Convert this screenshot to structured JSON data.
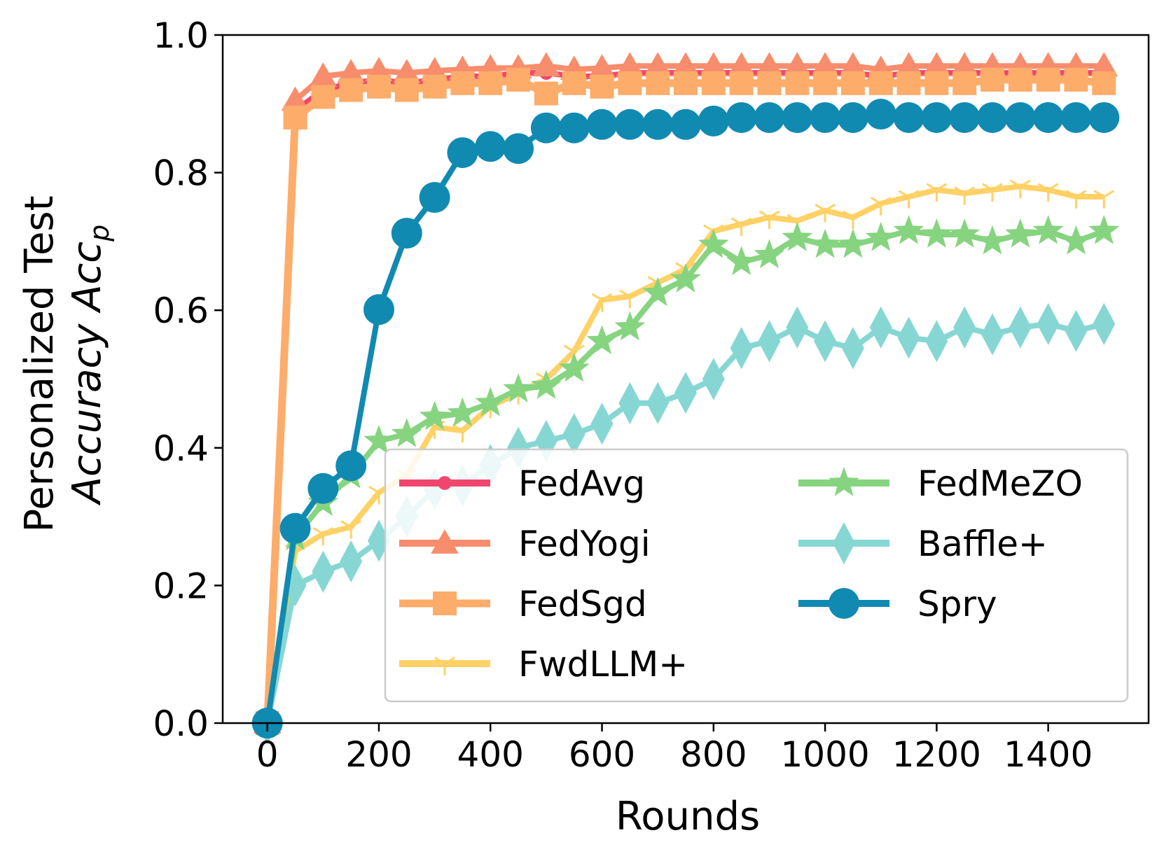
{
  "chart_data": {
    "type": "line",
    "title": "",
    "xlabel": "Rounds",
    "ylabel_line1": "Personalized Test",
    "ylabel_line2": "Accuracy Acc",
    "ylabel_subscript": "p",
    "xlim": [
      -80,
      1580
    ],
    "ylim": [
      0,
      1.0
    ],
    "xticks": [
      0,
      200,
      400,
      600,
      800,
      1000,
      1200,
      1400
    ],
    "yticks": [
      0.0,
      0.2,
      0.4,
      0.6,
      0.8,
      1.0
    ],
    "xtick_labels": [
      "0",
      "200",
      "400",
      "600",
      "800",
      "1000",
      "1200",
      "1400"
    ],
    "ytick_labels": [
      "0.0",
      "0.2",
      "0.4",
      "0.6",
      "0.8",
      "1.0"
    ],
    "legend_position": "lower-right",
    "x": [
      0,
      50,
      100,
      150,
      200,
      250,
      300,
      350,
      400,
      450,
      500,
      550,
      600,
      650,
      700,
      750,
      800,
      850,
      900,
      950,
      1000,
      1050,
      1100,
      1150,
      1200,
      1250,
      1300,
      1350,
      1400,
      1450,
      1500
    ],
    "series": [
      {
        "name": "FedAvg",
        "color": "#f0466e",
        "marker": "circle-small",
        "values": [
          0.0,
          0.89,
          0.92,
          0.93,
          0.935,
          0.93,
          0.935,
          0.94,
          0.94,
          0.945,
          0.945,
          0.94,
          0.94,
          0.945,
          0.945,
          0.945,
          0.945,
          0.945,
          0.945,
          0.945,
          0.945,
          0.945,
          0.94,
          0.945,
          0.945,
          0.945,
          0.945,
          0.945,
          0.945,
          0.945,
          0.945
        ]
      },
      {
        "name": "FedYogi",
        "color": "#f78d6c",
        "marker": "triangle",
        "values": [
          0.0,
          0.905,
          0.94,
          0.945,
          0.948,
          0.945,
          0.948,
          0.95,
          0.952,
          0.952,
          0.955,
          0.95,
          0.952,
          0.955,
          0.955,
          0.955,
          0.955,
          0.955,
          0.955,
          0.955,
          0.955,
          0.955,
          0.95,
          0.955,
          0.955,
          0.955,
          0.955,
          0.955,
          0.955,
          0.955,
          0.955
        ]
      },
      {
        "name": "FedSgd",
        "color": "#fdac6a",
        "marker": "square",
        "values": [
          0.0,
          0.88,
          0.91,
          0.92,
          0.925,
          0.92,
          0.925,
          0.93,
          0.93,
          0.935,
          0.915,
          0.93,
          0.925,
          0.93,
          0.93,
          0.93,
          0.93,
          0.93,
          0.93,
          0.93,
          0.93,
          0.93,
          0.93,
          0.93,
          0.93,
          0.93,
          0.935,
          0.935,
          0.935,
          0.935,
          0.93
        ]
      },
      {
        "name": "FwdLLM+",
        "color": "#ffd166",
        "marker": "tri-down",
        "values": [
          0.0,
          0.25,
          0.275,
          0.285,
          0.335,
          0.36,
          0.43,
          0.425,
          0.46,
          0.48,
          0.5,
          0.54,
          0.615,
          0.62,
          0.64,
          0.66,
          0.715,
          0.725,
          0.735,
          0.73,
          0.745,
          0.735,
          0.755,
          0.765,
          0.775,
          0.77,
          0.775,
          0.78,
          0.775,
          0.765,
          0.765
        ]
      },
      {
        "name": "FedMeZO",
        "color": "#86d47f",
        "marker": "star",
        "values": [
          0.0,
          0.27,
          0.32,
          0.36,
          0.41,
          0.42,
          0.445,
          0.45,
          0.465,
          0.485,
          0.49,
          0.515,
          0.555,
          0.575,
          0.625,
          0.645,
          0.695,
          0.67,
          0.68,
          0.705,
          0.695,
          0.695,
          0.705,
          0.715,
          0.71,
          0.71,
          0.7,
          0.71,
          0.715,
          0.7,
          0.715
        ]
      },
      {
        "name": "Baffle+",
        "color": "#86d7d3",
        "marker": "diamond",
        "values": [
          0.0,
          0.2,
          0.22,
          0.235,
          0.265,
          0.3,
          0.34,
          0.345,
          0.375,
          0.4,
          0.41,
          0.42,
          0.435,
          0.465,
          0.465,
          0.48,
          0.5,
          0.545,
          0.555,
          0.575,
          0.555,
          0.545,
          0.575,
          0.56,
          0.555,
          0.575,
          0.565,
          0.575,
          0.58,
          0.57,
          0.58
        ]
      },
      {
        "name": "Spry",
        "color": "#118ab2",
        "marker": "circle",
        "values": [
          0.0,
          0.283,
          0.341,
          0.374,
          0.601,
          0.712,
          0.764,
          0.829,
          0.838,
          0.835,
          0.865,
          0.865,
          0.87,
          0.87,
          0.87,
          0.87,
          0.875,
          0.88,
          0.88,
          0.88,
          0.88,
          0.88,
          0.885,
          0.88,
          0.88,
          0.88,
          0.88,
          0.88,
          0.88,
          0.88,
          0.88
        ]
      }
    ]
  }
}
